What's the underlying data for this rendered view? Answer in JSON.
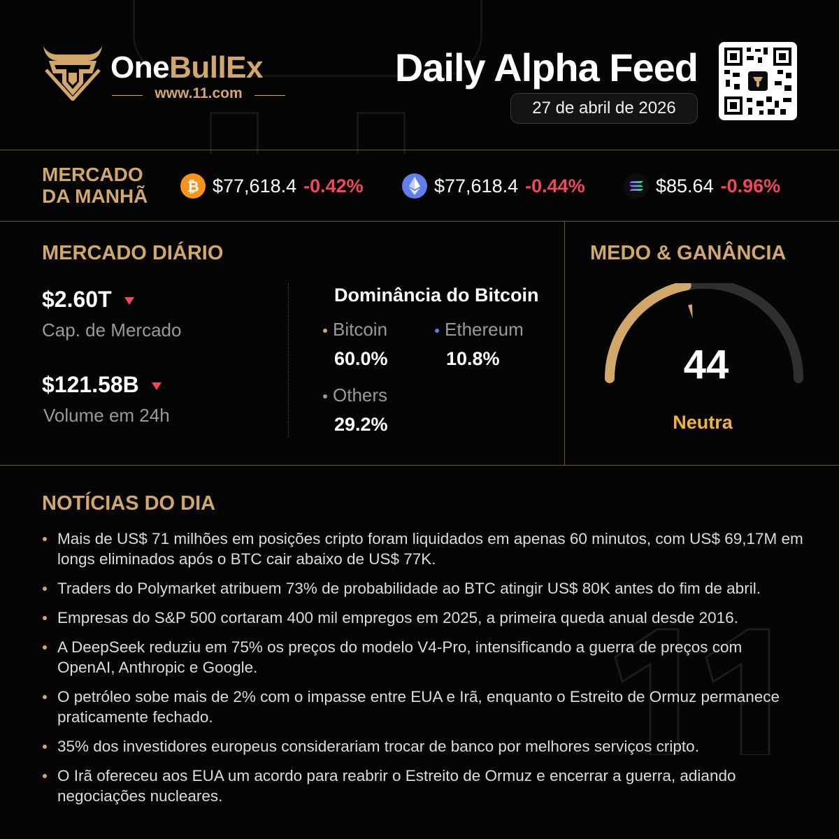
{
  "brand": {
    "name_white": "One",
    "name_gold": "BullEx",
    "url": "www.11.com"
  },
  "header": {
    "title": "Daily Alpha Feed",
    "date": "27 de abril de 2026"
  },
  "morning_market": {
    "label_line1": "MERCADO",
    "label_line2": "DA MANHÃ",
    "coins": [
      {
        "icon": "bitcoin-icon",
        "price": "$77,618.4",
        "change": "-0.42%",
        "color": "#f7931a"
      },
      {
        "icon": "ethereum-icon",
        "price": "$77,618.4",
        "change": "-0.44%",
        "color": "#627eea"
      },
      {
        "icon": "solana-icon",
        "price": "$85.64",
        "change": "-0.96%",
        "color": "#14f195"
      }
    ]
  },
  "daily_market": {
    "title": "MERCADO DIÁRIO",
    "market_cap_value": "$2.60T",
    "market_cap_label": "Cap. de Mercado",
    "volume_value": "$121.58B",
    "volume_label": "Volume em 24h",
    "dominance": {
      "title": "Dominância do Bitcoin",
      "items": [
        {
          "name": "Bitcoin",
          "value": "60.0%",
          "color": "#d2a86a"
        },
        {
          "name": "Ethereum",
          "value": "10.8%",
          "color": "#627eea"
        },
        {
          "name": "Others",
          "value": "29.2%",
          "color": "#9a9a9a"
        }
      ]
    }
  },
  "fear_greed": {
    "title": "MEDO & GANÂNCIA",
    "value": "44",
    "label": "Neutra",
    "level": 44,
    "fill_color": "#d2a86a",
    "track_color": "#3a3a3a"
  },
  "news": {
    "title": "NOTÍCIAS DO DIA",
    "items": [
      "Mais de US$ 71 milhões em posições cripto foram liquidados em apenas 60 minutos, com US$ 69,17M em longs eliminados após o BTC cair abaixo de US$ 77K.",
      "Traders do Polymarket atribuem 73% de probabilidade ao BTC atingir US$ 80K antes do fim de abril.",
      "Empresas do S&P 500 cortaram 400 mil empregos em 2025, a primeira queda anual desde 2016.",
      "A DeepSeek reduziu em 75% os preços do modelo V4-Pro, intensificando a guerra de preços com OpenAI, Anthropic e Google.",
      "O petróleo sobe mais de 2% com o impasse entre EUA e Irã, enquanto o Estreito de Ormuz permanece praticamente fechado.",
      "35% dos investidores europeus considerariam trocar de banco por melhores serviços cripto.",
      "O Irã ofereceu aos EUA um acordo para reabrir o Estreito de Ormuz e encerrar a guerra, adiando negociações nucleares."
    ]
  }
}
